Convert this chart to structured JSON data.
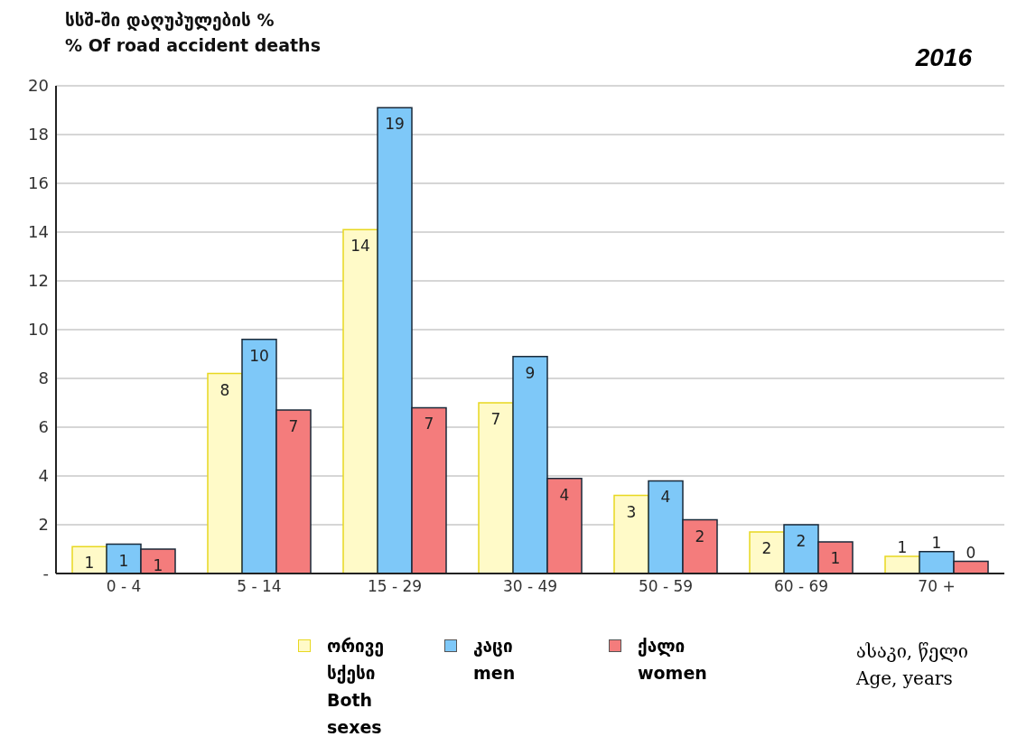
{
  "chart_data": {
    "type": "bar",
    "title": "2016",
    "ylabel": "სსშ-ში დაღუპულების %\n% Of road accident deaths",
    "xlabel": "ასაკი, წელი\nAge, years",
    "categories": [
      "0 - 4",
      "5 - 14",
      "15 - 29",
      "30 - 49",
      "50 - 59",
      "60 - 69",
      "70 +"
    ],
    "series": [
      {
        "name": "ორივე სქესი\nBoth\nsexes",
        "color": "#fffac8",
        "values": [
          1.1,
          8.2,
          14.1,
          7.0,
          3.2,
          1.7,
          0.7
        ],
        "value_labels": [
          "1",
          "8",
          "14",
          "7",
          "3",
          "2",
          "1"
        ]
      },
      {
        "name": "კაცი\nmen",
        "color": "#7ec8f8",
        "values": [
          1.2,
          9.6,
          19.1,
          8.9,
          3.8,
          2.0,
          0.9
        ],
        "value_labels": [
          "1",
          "10",
          "19",
          "9",
          "4",
          "2",
          "1"
        ]
      },
      {
        "name": "ქალი\nwomen",
        "color": "#f47c7c",
        "values": [
          1.0,
          6.7,
          6.8,
          3.9,
          2.2,
          1.3,
          0.5
        ],
        "value_labels": [
          "1",
          "7",
          "7",
          "4",
          "2",
          "1",
          "0"
        ]
      }
    ],
    "ylim": [
      0,
      20
    ],
    "yticks": [
      {
        "value": 0,
        "label": "-"
      },
      2,
      4,
      6,
      8,
      10,
      12,
      14,
      16,
      18,
      20
    ],
    "grid": "y",
    "legend": "bottom"
  }
}
